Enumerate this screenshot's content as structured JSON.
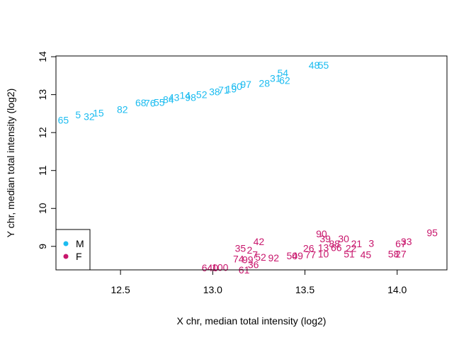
{
  "chart_data": {
    "type": "scatter",
    "title": "",
    "xlabel": "X chr, median total intensity (log2)",
    "ylabel": "Y chr, median total intensity (log2)",
    "xlim": [
      12.15,
      14.27
    ],
    "ylim": [
      8.38,
      14.02
    ],
    "xticks": [
      "12.5",
      "13.0",
      "13.5",
      "14.0"
    ],
    "yticks": [
      "9",
      "10",
      "11",
      "12",
      "13",
      "14"
    ],
    "marker": "text-labels",
    "legend": {
      "position": "bottom-left",
      "entries": [
        {
          "label": "M",
          "color": "#1cbcf0"
        },
        {
          "label": "F",
          "color": "#c8166c"
        }
      ]
    },
    "series": [
      {
        "name": "M",
        "color": "#1cbcf0",
        "points": [
          {
            "label": "65",
            "x": 12.19,
            "y": 12.33
          },
          {
            "label": "5",
            "x": 12.27,
            "y": 12.47
          },
          {
            "label": "32",
            "x": 12.33,
            "y": 12.42
          },
          {
            "label": "15",
            "x": 12.38,
            "y": 12.52
          },
          {
            "label": "82",
            "x": 12.51,
            "y": 12.61
          },
          {
            "label": "68",
            "x": 12.61,
            "y": 12.79
          },
          {
            "label": "76",
            "x": 12.66,
            "y": 12.78
          },
          {
            "label": "55",
            "x": 12.71,
            "y": 12.8
          },
          {
            "label": "84",
            "x": 12.76,
            "y": 12.87
          },
          {
            "label": "43",
            "x": 12.79,
            "y": 12.93
          },
          {
            "label": "14",
            "x": 12.85,
            "y": 12.98
          },
          {
            "label": "98",
            "x": 12.88,
            "y": 12.93
          },
          {
            "label": "52",
            "x": 12.94,
            "y": 13.0
          },
          {
            "label": "38",
            "x": 13.01,
            "y": 13.08
          },
          {
            "label": "71",
            "x": 13.06,
            "y": 13.12
          },
          {
            "label": "19",
            "x": 13.1,
            "y": 13.15
          },
          {
            "label": "60",
            "x": 13.13,
            "y": 13.22
          },
          {
            "label": "97",
            "x": 13.18,
            "y": 13.27
          },
          {
            "label": "28",
            "x": 13.28,
            "y": 13.3
          },
          {
            "label": "31",
            "x": 13.34,
            "y": 13.43
          },
          {
            "label": "54",
            "x": 13.38,
            "y": 13.57
          },
          {
            "label": "62",
            "x": 13.39,
            "y": 13.38
          },
          {
            "label": "48",
            "x": 13.55,
            "y": 13.78
          },
          {
            "label": "55",
            "x": 13.6,
            "y": 13.78
          }
        ]
      },
      {
        "name": "F",
        "color": "#c8166c",
        "points": [
          {
            "label": "95",
            "x": 14.19,
            "y": 9.36
          },
          {
            "label": "90",
            "x": 13.59,
            "y": 9.33
          },
          {
            "label": "39",
            "x": 13.61,
            "y": 9.2
          },
          {
            "label": "30",
            "x": 13.71,
            "y": 9.2
          },
          {
            "label": "33",
            "x": 14.05,
            "y": 9.13
          },
          {
            "label": "3",
            "x": 13.86,
            "y": 9.08
          },
          {
            "label": "21",
            "x": 13.78,
            "y": 9.07
          },
          {
            "label": "88",
            "x": 13.66,
            "y": 9.07
          },
          {
            "label": "67",
            "x": 14.02,
            "y": 9.07
          },
          {
            "label": "42",
            "x": 13.25,
            "y": 9.13
          },
          {
            "label": "35",
            "x": 13.15,
            "y": 8.95
          },
          {
            "label": "26",
            "x": 13.52,
            "y": 8.95
          },
          {
            "label": "13",
            "x": 13.6,
            "y": 8.97
          },
          {
            "label": "66",
            "x": 13.67,
            "y": 8.97
          },
          {
            "label": "22",
            "x": 13.75,
            "y": 8.95
          },
          {
            "label": "2",
            "x": 13.2,
            "y": 8.9
          },
          {
            "label": "7",
            "x": 13.23,
            "y": 8.78
          },
          {
            "label": "58",
            "x": 13.98,
            "y": 8.8
          },
          {
            "label": "27",
            "x": 14.02,
            "y": 8.8
          },
          {
            "label": "51",
            "x": 13.74,
            "y": 8.8
          },
          {
            "label": "45",
            "x": 13.83,
            "y": 8.78
          },
          {
            "label": "10",
            "x": 13.6,
            "y": 8.8
          },
          {
            "label": "77",
            "x": 13.53,
            "y": 8.78
          },
          {
            "label": "49",
            "x": 13.46,
            "y": 8.75
          },
          {
            "label": "50",
            "x": 13.43,
            "y": 8.75
          },
          {
            "label": "92",
            "x": 13.33,
            "y": 8.7
          },
          {
            "label": "52",
            "x": 13.26,
            "y": 8.72
          },
          {
            "label": "74",
            "x": 13.14,
            "y": 8.67
          },
          {
            "label": "99",
            "x": 13.19,
            "y": 8.65
          },
          {
            "label": "36",
            "x": 13.22,
            "y": 8.52
          },
          {
            "label": "64",
            "x": 12.97,
            "y": 8.44
          },
          {
            "label": "40",
            "x": 13.0,
            "y": 8.44
          },
          {
            "label": "100",
            "x": 13.04,
            "y": 8.45
          },
          {
            "label": "61",
            "x": 13.17,
            "y": 8.38
          }
        ]
      }
    ]
  }
}
